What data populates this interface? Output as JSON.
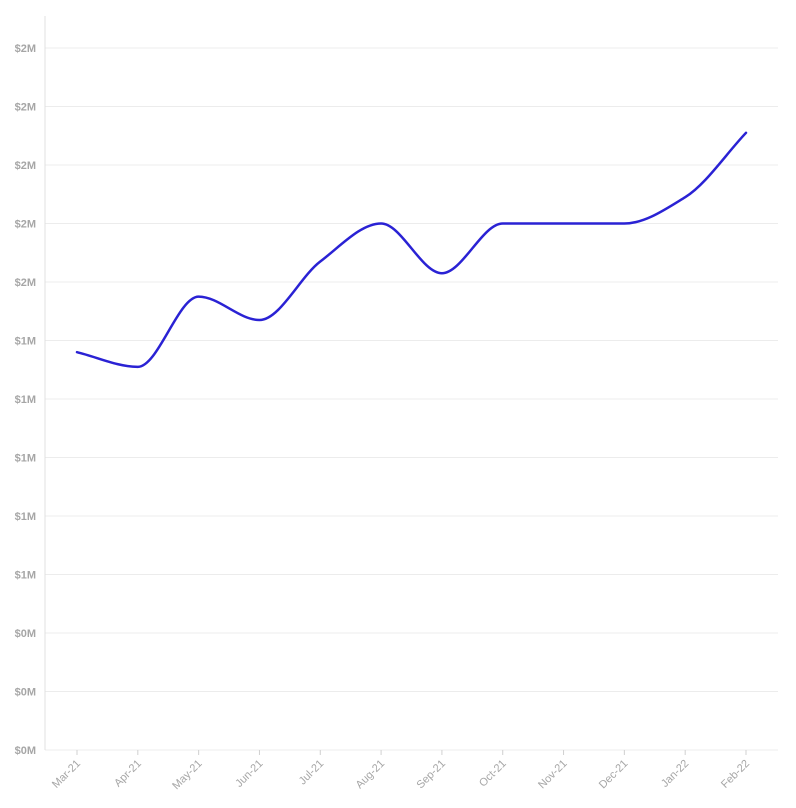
{
  "chart_data": {
    "type": "line",
    "x": [
      "Mar-21",
      "Apr-21",
      "May-21",
      "Jun-21",
      "Jul-21",
      "Aug-21",
      "Sep-21",
      "Oct-21",
      "Nov-21",
      "Dec-21",
      "Jan-22",
      "Feb-22"
    ],
    "series": [
      {
        "values": [
          1.36,
          1.31,
          1.55,
          1.47,
          1.67,
          1.8,
          1.63,
          1.8,
          1.8,
          1.8,
          1.89,
          2.11
        ]
      }
    ],
    "ylim": [
      0,
      2.4
    ],
    "y_ticks": [
      "$0M",
      "$0M",
      "$0M",
      "$1M",
      "$1M",
      "$1M",
      "$1M",
      "$1M",
      "$2M",
      "$2M",
      "$2M",
      "$2M",
      "$2M"
    ],
    "grid": true,
    "line_color": "#2a22d4",
    "title": "",
    "xlabel": "",
    "ylabel": ""
  }
}
